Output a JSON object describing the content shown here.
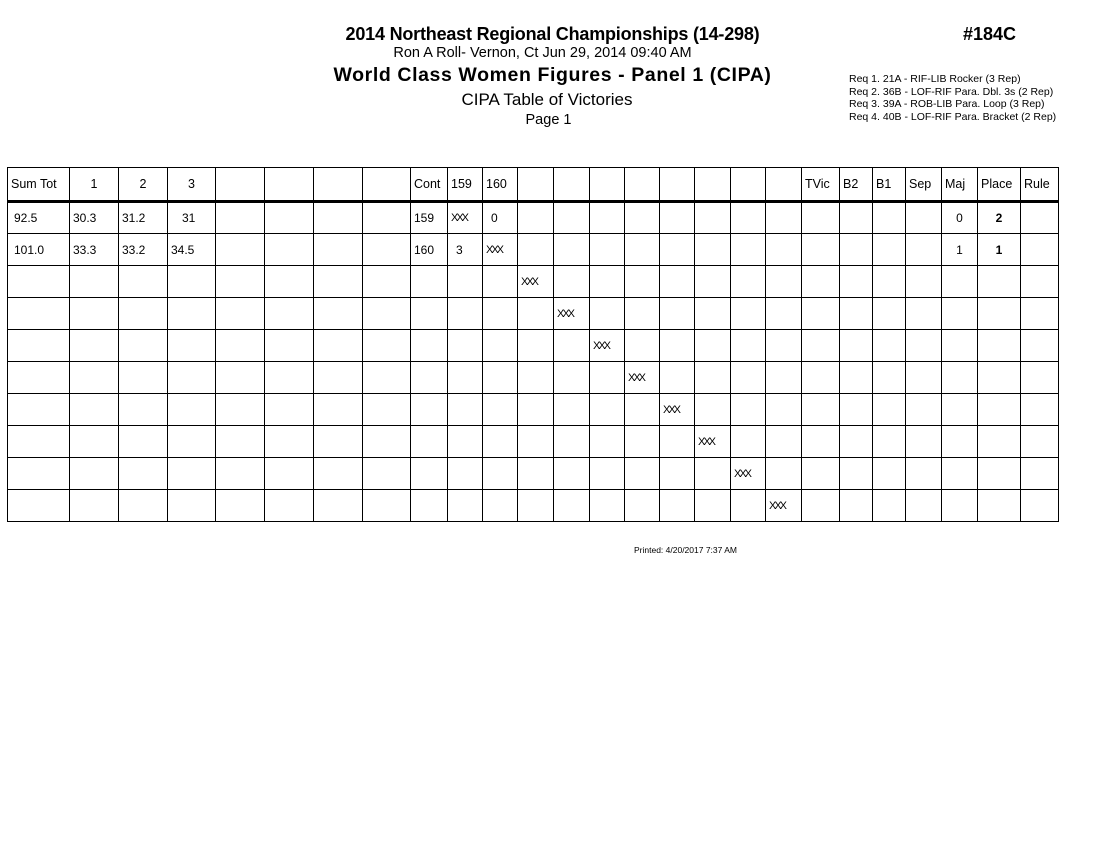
{
  "header": {
    "title": "2014 Northeast Regional Championships (14-298)",
    "subtitle": "Ron A Roll- Vernon, Ct  Jun 29, 2014  09:40 AM",
    "event": "World Class Women Figures - Panel 1 (CIPA)",
    "table_name": "CIPA Table of Victories",
    "page": "Page 1",
    "event_number": "#184C"
  },
  "requirements": [
    "Req  1.  21A - RIF-LIB Rocker (3 Rep)",
    "Req  2.  36B - LOF-RIF Para. Dbl. 3s (2 Rep)",
    "Req  3.  39A - ROB-LIB Para. Loop (3 Rep)",
    "Req  4.  40B - LOF-RIF Para. Bracket (2 Rep)"
  ],
  "table": {
    "columns": [
      "Sum Tot",
      "1",
      "2",
      "3",
      "",
      "",
      "",
      "",
      "Cont",
      "159",
      "160",
      "",
      "",
      "",
      "",
      "",
      "",
      "",
      "",
      "TVic",
      "B2",
      "B1",
      "Sep",
      "Maj",
      "Place",
      "Rule"
    ],
    "rows": [
      [
        "92.5",
        "30.3",
        "31.2",
        "31",
        "",
        "",
        "",
        "",
        "159",
        "XXX",
        "0",
        "",
        "",
        "",
        "",
        "",
        "",
        "",
        "",
        "",
        "",
        "",
        "",
        "0",
        "2",
        ""
      ],
      [
        "101.0",
        "33.3",
        "33.2",
        "34.5",
        "",
        "",
        "",
        "",
        "160",
        "3",
        "XXX",
        "",
        "",
        "",
        "",
        "",
        "",
        "",
        "",
        "",
        "",
        "",
        "",
        "1",
        "1",
        ""
      ],
      [
        "",
        "",
        "",
        "",
        "",
        "",
        "",
        "",
        "",
        "",
        "",
        "XXX",
        "",
        "",
        "",
        "",
        "",
        "",
        "",
        "",
        "",
        "",
        "",
        "",
        "",
        ""
      ],
      [
        "",
        "",
        "",
        "",
        "",
        "",
        "",
        "",
        "",
        "",
        "",
        "",
        "XXX",
        "",
        "",
        "",
        "",
        "",
        "",
        "",
        "",
        "",
        "",
        "",
        "",
        ""
      ],
      [
        "",
        "",
        "",
        "",
        "",
        "",
        "",
        "",
        "",
        "",
        "",
        "",
        "",
        "XXX",
        "",
        "",
        "",
        "",
        "",
        "",
        "",
        "",
        "",
        "",
        "",
        ""
      ],
      [
        "",
        "",
        "",
        "",
        "",
        "",
        "",
        "",
        "",
        "",
        "",
        "",
        "",
        "",
        "XXX",
        "",
        "",
        "",
        "",
        "",
        "",
        "",
        "",
        "",
        "",
        ""
      ],
      [
        "",
        "",
        "",
        "",
        "",
        "",
        "",
        "",
        "",
        "",
        "",
        "",
        "",
        "",
        "",
        "XXX",
        "",
        "",
        "",
        "",
        "",
        "",
        "",
        "",
        "",
        ""
      ],
      [
        "",
        "",
        "",
        "",
        "",
        "",
        "",
        "",
        "",
        "",
        "",
        "",
        "",
        "",
        "",
        "",
        "XXX",
        "",
        "",
        "",
        "",
        "",
        "",
        "",
        "",
        ""
      ],
      [
        "",
        "",
        "",
        "",
        "",
        "",
        "",
        "",
        "",
        "",
        "",
        "",
        "",
        "",
        "",
        "",
        "",
        "XXX",
        "",
        "",
        "",
        "",
        "",
        "",
        "",
        ""
      ],
      [
        "",
        "",
        "",
        "",
        "",
        "",
        "",
        "",
        "",
        "",
        "",
        "",
        "",
        "",
        "",
        "",
        "",
        "",
        "XXX",
        "",
        "",
        "",
        "",
        "",
        "",
        ""
      ]
    ]
  },
  "footer": {
    "printed": "Printed:  4/20/2017  7:37 AM"
  }
}
